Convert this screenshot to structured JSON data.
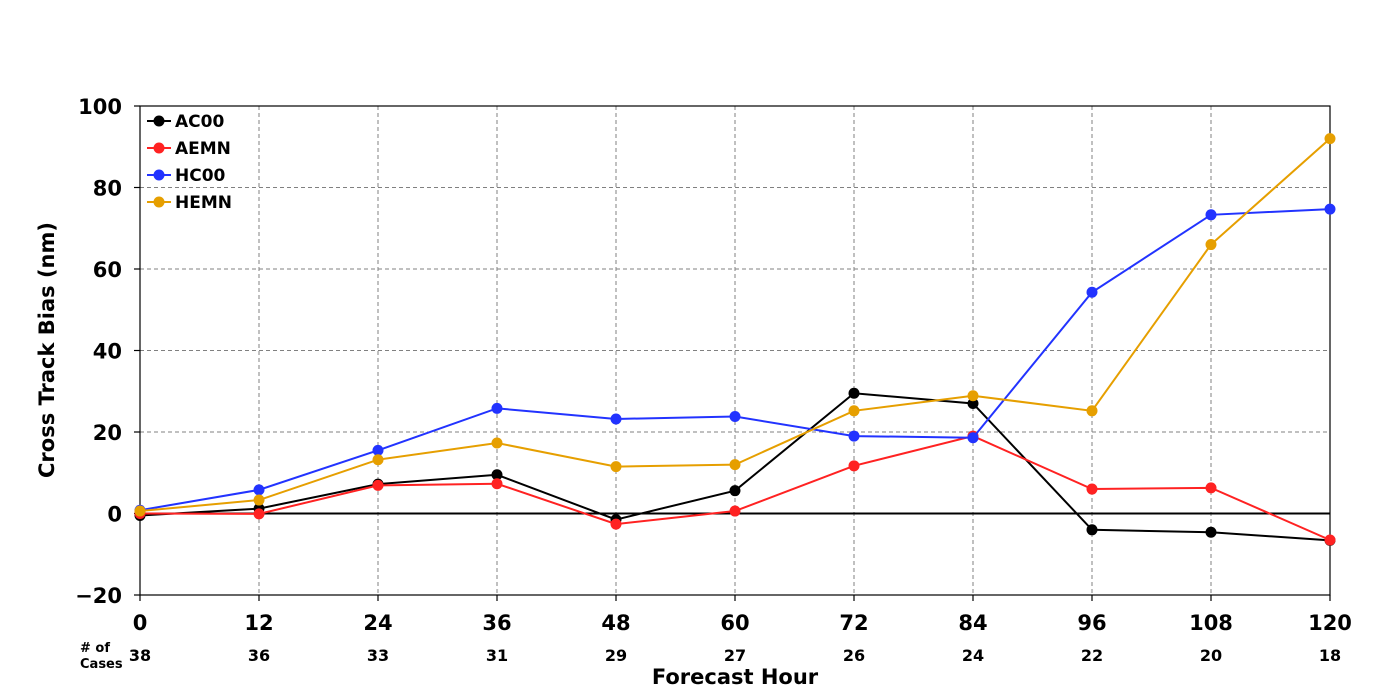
{
  "chart_data": {
    "type": "line",
    "title": "",
    "xlabel": "Forecast Hour",
    "ylabel": "Cross Track Bias (nm)",
    "x": [
      0,
      12,
      24,
      36,
      48,
      60,
      72,
      84,
      96,
      108,
      120
    ],
    "x_tick_labels": [
      "0",
      "12",
      "24",
      "36",
      "48",
      "60",
      "72",
      "84",
      "96",
      "108",
      "120"
    ],
    "xlim": [
      0,
      120
    ],
    "ylim": [
      -20,
      100
    ],
    "y_ticks": [
      -20,
      0,
      20,
      40,
      60,
      80,
      100
    ],
    "y_tick_labels": [
      "−20",
      "0",
      "20",
      "40",
      "60",
      "80",
      "100"
    ],
    "grid": true,
    "zero_line": true,
    "legend_position": "top-left",
    "cases_caption": [
      "# of",
      "Cases"
    ],
    "cases": [
      "38",
      "36",
      "33",
      "31",
      "29",
      "27",
      "26",
      "24",
      "22",
      "20",
      "18"
    ],
    "series": [
      {
        "name": "AC00",
        "color": "#000000",
        "values": [
          -0.5,
          1.2,
          7.2,
          9.5,
          -1.5,
          5.6,
          29.5,
          27.0,
          -4.0,
          -4.6,
          -6.6
        ]
      },
      {
        "name": "AEMN",
        "color": "#ff2222",
        "values": [
          0.0,
          -0.1,
          6.9,
          7.3,
          -2.6,
          0.6,
          11.7,
          19.0,
          6.0,
          6.3,
          -6.5
        ]
      },
      {
        "name": "HC00",
        "color": "#2233ff",
        "values": [
          0.8,
          5.8,
          15.5,
          25.8,
          23.2,
          23.8,
          19.0,
          18.6,
          54.3,
          73.3,
          74.7
        ]
      },
      {
        "name": "HEMN",
        "color": "#e69f00",
        "values": [
          0.6,
          3.3,
          13.2,
          17.3,
          11.5,
          12.0,
          25.2,
          28.9,
          25.2,
          66.0,
          92.0
        ]
      }
    ]
  }
}
